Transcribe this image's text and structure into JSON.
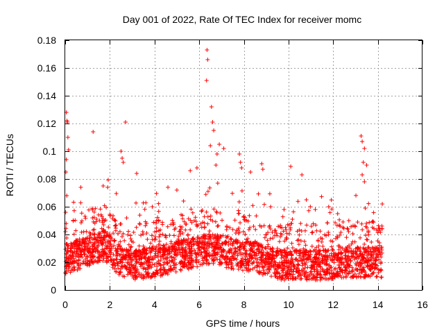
{
  "chart_data": {
    "type": "scatter",
    "title": "Day 001 of 2022, Rate Of TEC Index for receiver momc",
    "xlabel": "GPS time / hours",
    "ylabel": "ROTI / TECUs",
    "xlim": [
      0,
      16
    ],
    "ylim": [
      0,
      0.18
    ],
    "xticks": [
      0,
      2,
      4,
      6,
      8,
      10,
      12,
      14,
      16
    ],
    "yticks": [
      0,
      0.02,
      0.04,
      0.06,
      0.08,
      0.1,
      0.12,
      0.14,
      0.16,
      0.18
    ],
    "ytick_labels": [
      "0",
      "0.02",
      "0.04",
      "0.06",
      "0.08",
      "0.1",
      "0.12",
      "0.14",
      "0.16",
      "0.18"
    ],
    "grid": true,
    "marker": "+",
    "marker_color": "#ff0000",
    "baseline_envelope": [
      [
        0.0,
        0.022
      ],
      [
        1.0,
        0.028
      ],
      [
        1.8,
        0.032
      ],
      [
        2.5,
        0.02
      ],
      [
        3.0,
        0.018
      ],
      [
        4.0,
        0.02
      ],
      [
        5.0,
        0.024
      ],
      [
        6.0,
        0.028
      ],
      [
        6.5,
        0.03
      ],
      [
        7.5,
        0.026
      ],
      [
        8.5,
        0.024
      ],
      [
        9.5,
        0.018
      ],
      [
        10.5,
        0.018
      ],
      [
        11.5,
        0.018
      ],
      [
        12.5,
        0.02
      ],
      [
        13.5,
        0.02
      ],
      [
        14.2,
        0.02
      ]
    ],
    "notable_points": [
      {
        "x": 0.05,
        "y": 0.128
      },
      {
        "x": 0.08,
        "y": 0.122
      },
      {
        "x": 0.1,
        "y": 0.121
      },
      {
        "x": 0.12,
        "y": 0.11
      },
      {
        "x": 0.15,
        "y": 0.101
      },
      {
        "x": 0.05,
        "y": 0.094
      },
      {
        "x": 0.03,
        "y": 0.085
      },
      {
        "x": 0.07,
        "y": 0.068
      },
      {
        "x": 0.02,
        "y": 0.056
      },
      {
        "x": 1.25,
        "y": 0.114
      },
      {
        "x": 2.5,
        "y": 0.1
      },
      {
        "x": 2.55,
        "y": 0.095
      },
      {
        "x": 2.6,
        "y": 0.092
      },
      {
        "x": 2.7,
        "y": 0.121
      },
      {
        "x": 3.2,
        "y": 0.084
      },
      {
        "x": 0.7,
        "y": 0.074
      },
      {
        "x": 1.7,
        "y": 0.075
      },
      {
        "x": 1.9,
        "y": 0.074
      },
      {
        "x": 6.35,
        "y": 0.173
      },
      {
        "x": 6.38,
        "y": 0.166
      },
      {
        "x": 6.33,
        "y": 0.151
      },
      {
        "x": 6.55,
        "y": 0.132
      },
      {
        "x": 6.6,
        "y": 0.121
      },
      {
        "x": 6.65,
        "y": 0.115
      },
      {
        "x": 6.5,
        "y": 0.104
      },
      {
        "x": 6.9,
        "y": 0.105
      },
      {
        "x": 7.1,
        "y": 0.102
      },
      {
        "x": 6.8,
        "y": 0.098
      },
      {
        "x": 6.75,
        "y": 0.09
      },
      {
        "x": 5.9,
        "y": 0.088
      },
      {
        "x": 5.6,
        "y": 0.086
      },
      {
        "x": 7.8,
        "y": 0.098
      },
      {
        "x": 7.85,
        "y": 0.092
      },
      {
        "x": 7.9,
        "y": 0.088
      },
      {
        "x": 8.3,
        "y": 0.085
      },
      {
        "x": 8.8,
        "y": 0.091
      },
      {
        "x": 8.85,
        "y": 0.087
      },
      {
        "x": 10.1,
        "y": 0.089
      },
      {
        "x": 10.6,
        "y": 0.083
      },
      {
        "x": 13.25,
        "y": 0.111
      },
      {
        "x": 13.3,
        "y": 0.107
      },
      {
        "x": 13.4,
        "y": 0.102
      },
      {
        "x": 13.35,
        "y": 0.092
      },
      {
        "x": 13.5,
        "y": 0.09
      },
      {
        "x": 13.3,
        "y": 0.083
      },
      {
        "x": 13.4,
        "y": 0.078
      },
      {
        "x": 14.2,
        "y": 0.062
      },
      {
        "x": 10.8,
        "y": 0.065
      },
      {
        "x": 11.2,
        "y": 0.058
      },
      {
        "x": 11.8,
        "y": 0.06
      },
      {
        "x": 12.2,
        "y": 0.055
      },
      {
        "x": 4.6,
        "y": 0.074
      },
      {
        "x": 5.0,
        "y": 0.072
      },
      {
        "x": 3.9,
        "y": 0.06
      },
      {
        "x": 9.8,
        "y": 0.058
      },
      {
        "x": 9.2,
        "y": 0.06
      },
      {
        "x": 12.7,
        "y": 0.05
      }
    ],
    "x_end": 14.2
  }
}
